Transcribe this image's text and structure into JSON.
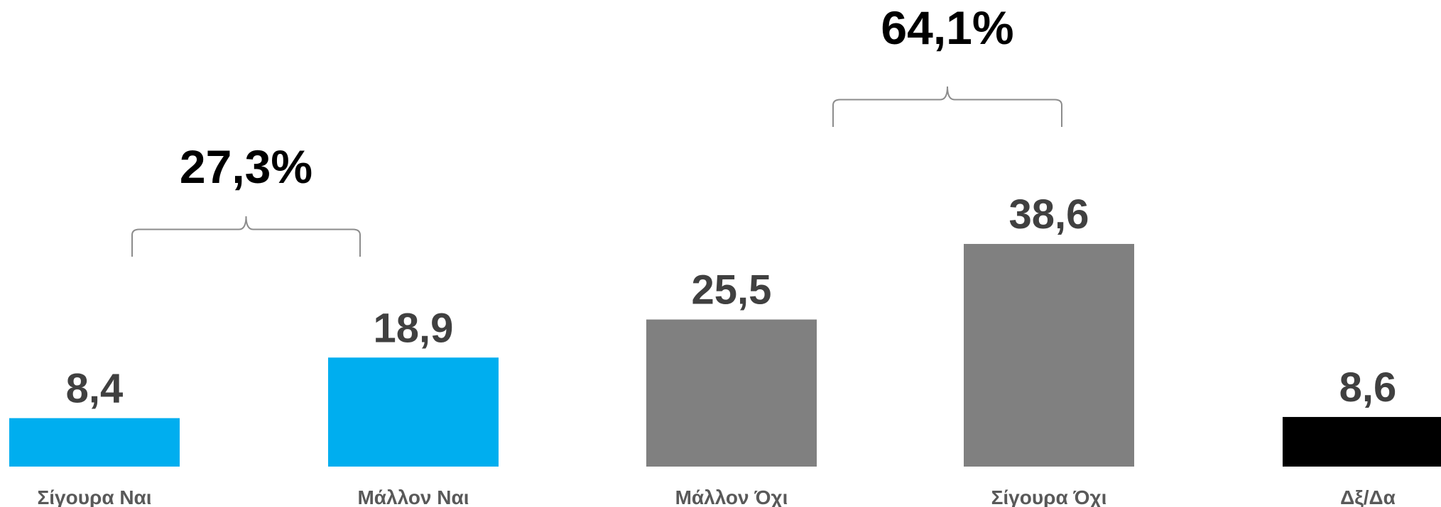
{
  "chart_data": {
    "type": "bar",
    "categories": [
      "Σίγουρα Ναι",
      "Μάλλον Ναι",
      "Μάλλον Όχι",
      "Σίγουρα Όχι",
      "Δξ/Δα"
    ],
    "values": [
      8.4,
      18.9,
      25.5,
      38.6,
      8.6
    ],
    "value_labels": [
      "8,4",
      "18,9",
      "25,5",
      "38,6",
      "8,6"
    ],
    "colors": [
      "#00AEEF",
      "#00AEEF",
      "#808080",
      "#808080",
      "#000000"
    ],
    "title": "",
    "xlabel": "",
    "ylabel": "",
    "ylim": [
      0,
      40
    ],
    "grid": false,
    "legend": "none",
    "groups": [
      {
        "label": "27,3%",
        "from": 0,
        "to": 1
      },
      {
        "label": "64,1%",
        "from": 2,
        "to": 3
      }
    ]
  }
}
